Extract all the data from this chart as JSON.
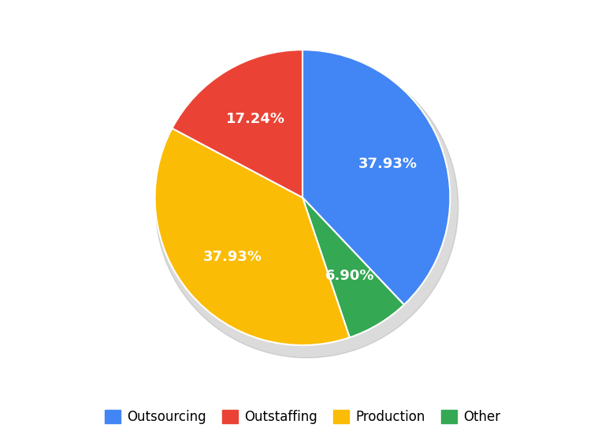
{
  "labels": [
    "Outsourcing",
    "Outstaffing",
    "Production",
    "Other"
  ],
  "values": [
    37.93,
    17.24,
    37.93,
    6.9
  ],
  "colors": [
    "#4285F4",
    "#EA4335",
    "#FBBC05",
    "#34A853"
  ],
  "pct_labels": [
    "37.93%",
    "17.24%",
    "37.93%",
    "6.90%"
  ],
  "legend_labels": [
    "Outsourcing",
    "Outstaffing",
    "Production",
    "Other"
  ],
  "bg_color": "#FFFFFF",
  "text_color": "#FFFFFF",
  "pct_fontsize": 13,
  "legend_fontsize": 12,
  "shadow_color": "#AAAAAA",
  "wedge_order": [
    0,
    3,
    2,
    1
  ]
}
